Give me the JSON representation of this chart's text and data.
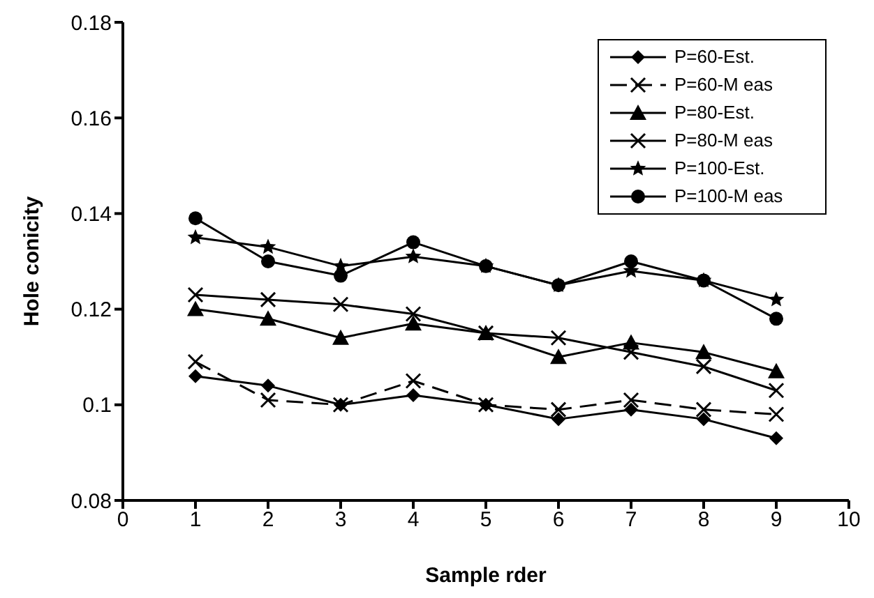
{
  "chart_data": {
    "type": "line",
    "xlabel": "Sample rder",
    "ylabel": "Hole conicity",
    "x": [
      1,
      2,
      3,
      4,
      5,
      6,
      7,
      8,
      9
    ],
    "xlim": [
      0,
      10
    ],
    "xticks": [
      0,
      1,
      2,
      3,
      4,
      5,
      6,
      7,
      8,
      9,
      10
    ],
    "ylim": [
      0.08,
      0.18
    ],
    "yticks": [
      0.08,
      0.1,
      0.12,
      0.14,
      0.16,
      0.18
    ],
    "grid": false,
    "legend": "top right",
    "series": [
      {
        "name": "P=60-Est.",
        "color": "#000000",
        "marker": "diamond",
        "line_style": "solid",
        "values": [
          0.106,
          0.104,
          0.1,
          0.102,
          0.1,
          0.097,
          0.099,
          0.097,
          0.093
        ]
      },
      {
        "name": "P=60-M eas",
        "color": "#000000",
        "marker": "cross",
        "line_style": "dashed",
        "values": [
          0.109,
          0.101,
          0.1,
          0.105,
          0.1,
          0.099,
          0.101,
          0.099,
          0.098
        ]
      },
      {
        "name": "P=80-Est.",
        "color": "#000000",
        "marker": "triangle",
        "line_style": "solid",
        "values": [
          0.12,
          0.118,
          0.114,
          0.117,
          0.115,
          0.11,
          0.113,
          0.111,
          0.107
        ]
      },
      {
        "name": "P=80-M eas",
        "color": "#000000",
        "marker": "cross",
        "line_style": "solid",
        "values": [
          0.123,
          0.122,
          0.121,
          0.119,
          0.115,
          0.114,
          0.111,
          0.108,
          0.103
        ]
      },
      {
        "name": "P=100-Est.",
        "color": "#000000",
        "marker": "star",
        "line_style": "solid",
        "values": [
          0.135,
          0.133,
          0.129,
          0.131,
          0.129,
          0.125,
          0.128,
          0.126,
          0.122
        ]
      },
      {
        "name": "P=100-M eas",
        "color": "#000000",
        "marker": "circle",
        "line_style": "solid",
        "values": [
          0.139,
          0.13,
          0.127,
          0.134,
          0.129,
          0.125,
          0.13,
          0.126,
          0.118
        ]
      }
    ]
  }
}
